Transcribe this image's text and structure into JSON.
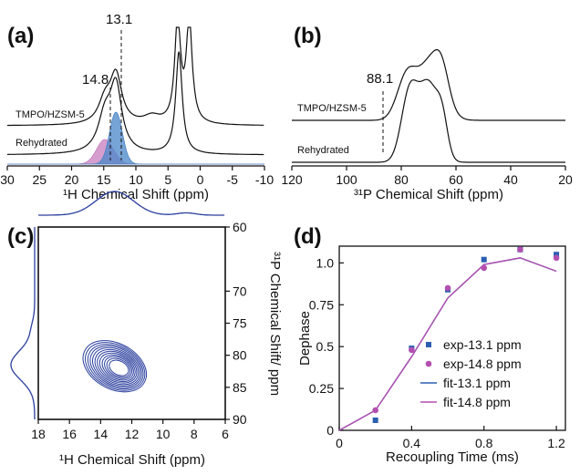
{
  "panels": {
    "a": {
      "letter": "(a)"
    },
    "b": {
      "letter": "(b)"
    },
    "c": {
      "letter": "(c)"
    },
    "d": {
      "letter": "(d)"
    }
  },
  "chart_data": [
    {
      "panel": "(a)",
      "type": "line",
      "xlabel": "¹H Chemical Shift (ppm)",
      "xlim": [
        30,
        -10
      ],
      "x_reversed": true,
      "xticks": [
        30,
        25,
        20,
        15,
        10,
        5,
        0,
        -5,
        -10
      ],
      "series": [
        {
          "name": "TMPO/HZSM-5",
          "peaks": [
            {
              "center": 13.1,
              "height": 0.75,
              "width": 1.1
            },
            {
              "center": 14.8,
              "height": 0.35,
              "width": 1.2
            },
            {
              "center": 7.5,
              "height": 0.12,
              "width": 1.6
            },
            {
              "center": 3.5,
              "height": 1.6,
              "width": 0.55
            },
            {
              "center": 1.7,
              "height": 1.6,
              "width": 0.55
            }
          ]
        },
        {
          "name": "Rehydrated",
          "peaks": [
            {
              "center": 13.1,
              "height": 1.0,
              "width": 1.1
            },
            {
              "center": 14.8,
              "height": 0.55,
              "width": 1.3
            },
            {
              "center": 3.3,
              "height": 1.6,
              "width": 0.6
            }
          ]
        }
      ],
      "fit_components": [
        {
          "center": 14.8,
          "color": "#c77dbf"
        },
        {
          "center": 13.1,
          "color": "#4a86c8"
        }
      ],
      "annotations": [
        "13.1",
        "14.8"
      ]
    },
    {
      "panel": "(b)",
      "type": "line",
      "xlabel": "³¹P Chemical Shift (ppm)",
      "xlim": [
        120,
        20
      ],
      "x_reversed": true,
      "xticks": [
        120,
        100,
        80,
        60,
        40,
        20
      ],
      "series": [
        {
          "name": "TMPO/HZSM-5",
          "peaks": [
            {
              "center": 78,
              "height": 0.55,
              "width": 3.5
            },
            {
              "center": 69,
              "height": 0.75,
              "width": 4.5
            },
            {
              "center": 65,
              "height": 0.3,
              "width": 2.5
            }
          ]
        },
        {
          "name": "Rehydrated",
          "peaks": [
            {
              "center": 77,
              "height": 0.85,
              "width": 3.0
            },
            {
              "center": 70,
              "height": 0.95,
              "width": 3.5
            },
            {
              "center": 65,
              "height": 0.4,
              "width": 2.0
            }
          ]
        }
      ],
      "annotations": [
        "88.1"
      ]
    },
    {
      "panel": "(c)",
      "type": "heatmap",
      "xlabel": "¹H Chemical Shift (ppm)",
      "ylabel": "³¹P Chemical Shift/ ppm",
      "xlim": [
        18,
        6
      ],
      "ylim": [
        60,
        90
      ],
      "xticks": [
        18,
        16,
        14,
        12,
        10,
        8,
        6
      ],
      "yticks": [
        60,
        70,
        75,
        80,
        85,
        90
      ],
      "contour_center": {
        "x": 12.8,
        "y": 82
      },
      "contour_levels": 12,
      "color": "#2b3f9e"
    },
    {
      "panel": "(d)",
      "type": "scatter",
      "xlabel": "Recoupling Time (ms)",
      "ylabel": "Dephase",
      "xlim": [
        0,
        1.25
      ],
      "ylim": [
        0,
        1.1
      ],
      "xticks": [
        0,
        0.4,
        0.8,
        1.2
      ],
      "yticks": [
        0,
        0.25,
        0.5,
        0.75,
        1.0
      ],
      "series": [
        {
          "name": "exp-13.1 ppm",
          "kind": "points",
          "marker": "square",
          "color": "#2b5fb0",
          "x": [
            0.2,
            0.4,
            0.6,
            0.8,
            1.0,
            1.2
          ],
          "y": [
            0.06,
            0.49,
            0.84,
            1.02,
            1.08,
            1.05
          ]
        },
        {
          "name": "exp-14.8 ppm",
          "kind": "points",
          "marker": "circle",
          "color": "#b24fb0",
          "x": [
            0.2,
            0.4,
            0.6,
            0.8,
            1.0,
            1.2
          ],
          "y": [
            0.12,
            0.48,
            0.85,
            0.97,
            1.08,
            1.03
          ]
        },
        {
          "name": "fit-13.1 ppm",
          "kind": "line",
          "color": "#2b5fb0",
          "x": [
            0,
            0.2,
            0.4,
            0.6,
            0.8,
            1.0,
            1.2
          ],
          "y": [
            0,
            0.12,
            0.44,
            0.79,
            0.99,
            1.03,
            0.95
          ]
        },
        {
          "name": "fit-14.8 ppm",
          "kind": "line",
          "color": "#b24fb0",
          "x": [
            0,
            0.2,
            0.4,
            0.6,
            0.8,
            1.0,
            1.2
          ],
          "y": [
            0,
            0.12,
            0.44,
            0.79,
            0.99,
            1.03,
            0.95
          ]
        }
      ],
      "legend_placement": "bottom-right"
    }
  ]
}
